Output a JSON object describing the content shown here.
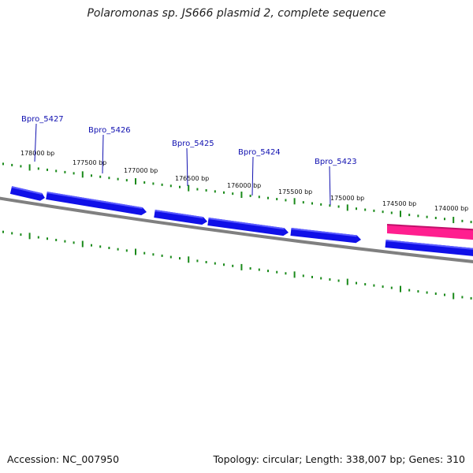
{
  "title": "Polaromonas sp. JS666 plasmid 2, complete sequence",
  "footer": {
    "accession": "Accession: NC_007950",
    "summary": "Topology: circular; Length: 338,007 bp; Genes: 310"
  },
  "colors": {
    "cds": "#1010e8",
    "cds_highlight": "#5b5bff",
    "rna": "#ff1f8f",
    "rna_dark": "#c0106a",
    "backbone": "#808080",
    "tick": "#1a8a1a",
    "gene_label": "#1010b0"
  },
  "ticks": [
    {
      "label": "178000 bp"
    },
    {
      "label": "177500 bp"
    },
    {
      "label": "177000 bp"
    },
    {
      "label": "176500 bp"
    },
    {
      "label": "176000 bp"
    },
    {
      "label": "175500 bp"
    },
    {
      "label": "175000 bp"
    },
    {
      "label": "174500 bp"
    },
    {
      "label": "174000 bp"
    }
  ],
  "genes": [
    {
      "label": "Bpro_5427"
    },
    {
      "label": "Bpro_5426"
    },
    {
      "label": "Bpro_5425"
    },
    {
      "label": "Bpro_5424"
    },
    {
      "label": "Bpro_5423"
    }
  ]
}
